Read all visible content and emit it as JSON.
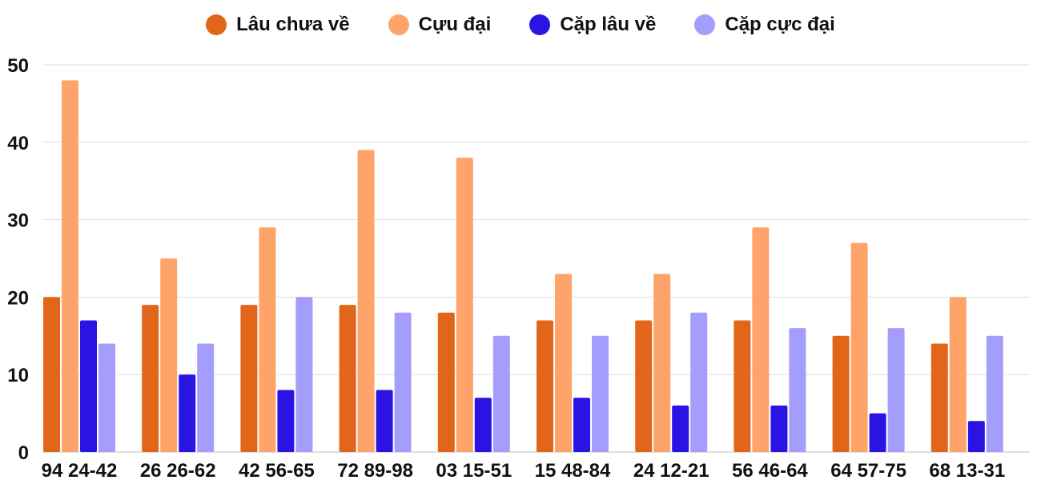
{
  "chart_data": {
    "type": "bar",
    "categories": [
      "94 24-42",
      "26 26-62",
      "42 56-65",
      "72 89-98",
      "03 15-51",
      "15 48-84",
      "24 12-21",
      "56 46-64",
      "64 57-75",
      "68 13-31"
    ],
    "series": [
      {
        "name": "Lâu chưa về",
        "color": "#e2661a",
        "values": [
          20,
          19,
          19,
          19,
          18,
          17,
          17,
          17,
          15,
          14
        ]
      },
      {
        "name": "Cựu đại",
        "color": "#fea46a",
        "values": [
          48,
          25,
          29,
          39,
          38,
          23,
          23,
          29,
          27,
          20
        ]
      },
      {
        "name": "Cặp lâu về",
        "color": "#2a14e4",
        "values": [
          17,
          10,
          8,
          8,
          7,
          7,
          6,
          6,
          5,
          4
        ]
      },
      {
        "name": "Cặp cực đại",
        "color": "#a59dfc",
        "values": [
          14,
          14,
          20,
          18,
          15,
          15,
          18,
          16,
          16,
          15
        ]
      }
    ],
    "ylim": [
      0,
      50
    ],
    "yticks": [
      0,
      10,
      20,
      30,
      40,
      50
    ],
    "grid": true,
    "legend_position": "top-center",
    "title": "",
    "xlabel": "",
    "ylabel": ""
  }
}
